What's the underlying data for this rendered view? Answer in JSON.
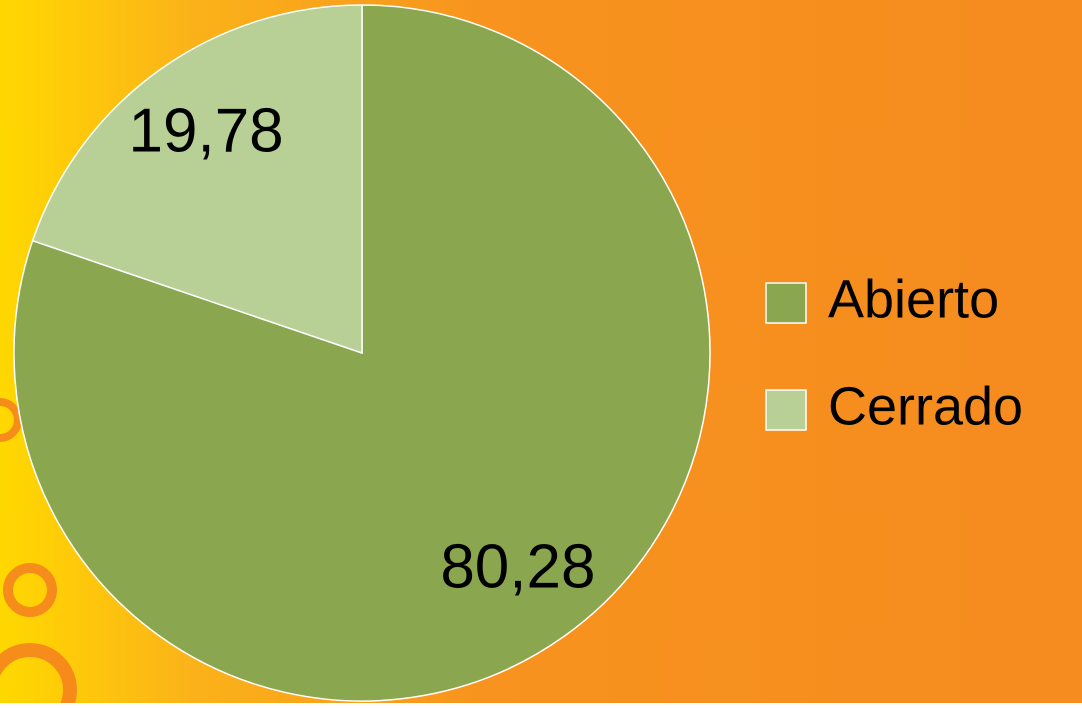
{
  "chart_data": {
    "type": "pie",
    "categories": [
      "Abierto",
      "Cerrado"
    ],
    "values": [
      80.28,
      19.78
    ],
    "value_labels": [
      "80,28",
      "19,78"
    ],
    "colors": [
      "#8aa64f",
      "#b8cf96"
    ],
    "legend": "right"
  }
}
